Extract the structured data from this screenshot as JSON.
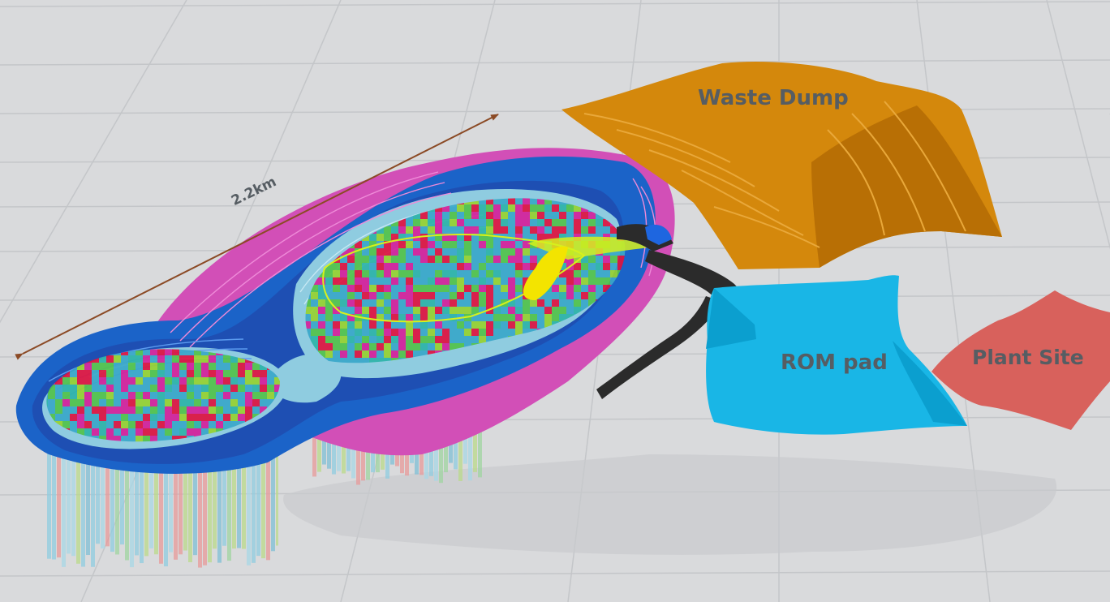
{
  "labels": {
    "waste_dump": "Waste Dump",
    "rom_pad": "ROM pad",
    "plant_site": "Plant Site",
    "pit_length": "2.2km"
  },
  "colors": {
    "background": "#d9dadc",
    "grid": "#c4c6c9",
    "label_text": "#565d63",
    "waste_dump": "#d4880c",
    "waste_dump_dark": "#b86f05",
    "rom_pad": "#19b6e6",
    "rom_pad_dark": "#0b9fcf",
    "plant_site": "#d8615c",
    "haul_road": "#2b2b2b",
    "pit_outer": "#d24fb7",
    "pit_shell": "#1b63c8",
    "pit_inner": "#8fcce0",
    "arrow": "#8b4a25",
    "block_model": [
      "#e0123f",
      "#d61f9a",
      "#3aa7c9",
      "#53c24a",
      "#97d130",
      "#2eb3a8"
    ]
  }
}
